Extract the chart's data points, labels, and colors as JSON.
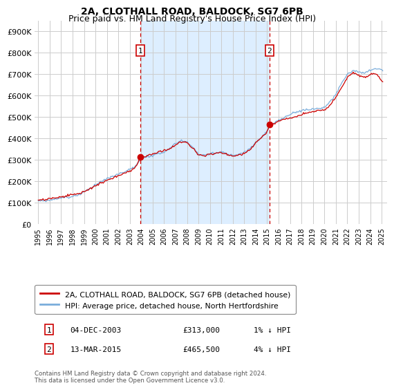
{
  "title": "2A, CLOTHALL ROAD, BALDOCK, SG7 6PB",
  "subtitle": "Price paid vs. HM Land Registry's House Price Index (HPI)",
  "ylabel_ticks": [
    "£0",
    "£100K",
    "£200K",
    "£300K",
    "£400K",
    "£500K",
    "£600K",
    "£700K",
    "£800K",
    "£900K"
  ],
  "ytick_values": [
    0,
    100000,
    200000,
    300000,
    400000,
    500000,
    600000,
    700000,
    800000,
    900000
  ],
  "ylim": [
    0,
    950000
  ],
  "xlim_start": 1994.7,
  "xlim_end": 2025.5,
  "xtick_years": [
    1995,
    1996,
    1997,
    1998,
    1999,
    2000,
    2001,
    2002,
    2003,
    2004,
    2005,
    2006,
    2007,
    2008,
    2009,
    2010,
    2011,
    2012,
    2013,
    2014,
    2015,
    2016,
    2017,
    2018,
    2019,
    2020,
    2021,
    2022,
    2023,
    2024,
    2025
  ],
  "sale1_x": 2003.92,
  "sale1_y": 313000,
  "sale1_label": "1",
  "sale1_date": "04-DEC-2003",
  "sale1_price": "£313,000",
  "sale1_hpi": "1% ↓ HPI",
  "sale2_x": 2015.2,
  "sale2_y": 465500,
  "sale2_label": "2",
  "sale2_date": "13-MAR-2015",
  "sale2_price": "£465,500",
  "sale2_hpi": "4% ↓ HPI",
  "red_line_color": "#cc0000",
  "blue_line_color": "#7aaddb",
  "shade_color": "#ddeeff",
  "dashed_vline_color": "#cc0000",
  "grid_color": "#cccccc",
  "bg_color": "#ffffff",
  "legend_label_red": "2A, CLOTHALL ROAD, BALDOCK, SG7 6PB (detached house)",
  "legend_label_blue": "HPI: Average price, detached house, North Hertfordshire",
  "footer": "Contains HM Land Registry data © Crown copyright and database right 2024.\nThis data is licensed under the Open Government Licence v3.0.",
  "title_fontsize": 10,
  "subtitle_fontsize": 9
}
